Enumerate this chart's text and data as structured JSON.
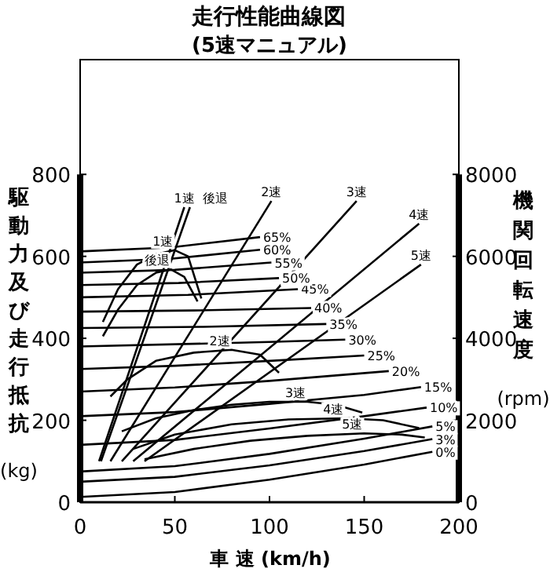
{
  "chart_data": {
    "type": "line",
    "title": "走行性能曲線図",
    "subtitle": "(5速マニュアル)",
    "xlabel": "車 速 (km/h)",
    "ylabel": "駆動力及び走行抵抗 (kg)",
    "y2label": "機関回転速度 (rpm)",
    "xlim": [
      0,
      200
    ],
    "xticks": [
      0,
      50,
      100,
      150,
      200
    ],
    "ylim": [
      0,
      1080
    ],
    "yticks": [
      0,
      200,
      400,
      600,
      800
    ],
    "y2lim": [
      0,
      10800
    ],
    "y2ticks": [
      0,
      2000,
      4000,
      6000,
      8000
    ],
    "grid": false,
    "legend": false,
    "series": [
      {
        "name": "1速",
        "color": "#000000",
        "axis": "y2",
        "x": [
          10,
          55
        ],
        "values": [
          1000,
          7200
        ]
      },
      {
        "name": "後退",
        "color": "#000000",
        "axis": "y2",
        "x": [
          11,
          58
        ],
        "values": [
          1000,
          7200
        ]
      },
      {
        "name": "2速",
        "color": "#000000",
        "axis": "y2",
        "x": [
          16,
          101
        ],
        "values": [
          1000,
          7350
        ]
      },
      {
        "name": "3速",
        "color": "#000000",
        "axis": "y2",
        "x": [
          22,
          146
        ],
        "values": [
          1000,
          7350
        ]
      },
      {
        "name": "4速",
        "color": "#000000",
        "axis": "y2",
        "x": [
          28,
          179
        ],
        "values": [
          1000,
          6800
        ]
      },
      {
        "name": "5速",
        "color": "#000000",
        "axis": "y2",
        "x": [
          34,
          180
        ],
        "values": [
          1000,
          5800
        ]
      },
      {
        "name": "1速",
        "color": "#000000",
        "x": [
          12,
          20,
          30,
          40,
          50,
          57,
          64
        ],
        "values": [
          440,
          520,
          580,
          605,
          615,
          600,
          497
        ]
      },
      {
        "name": "後退",
        "color": "#000000",
        "x": [
          12,
          20,
          30,
          40,
          48,
          55,
          62
        ],
        "values": [
          405,
          470,
          530,
          560,
          568,
          550,
          490
        ]
      },
      {
        "name": "2速",
        "color": "#000000",
        "x": [
          16,
          25,
          40,
          60,
          80,
          95,
          105
        ],
        "values": [
          258,
          300,
          345,
          365,
          372,
          360,
          316
        ]
      },
      {
        "name": "3速",
        "color": "#000000",
        "x": [
          22,
          40,
          60,
          80,
          100,
          120,
          135,
          149
        ],
        "values": [
          173,
          205,
          225,
          238,
          245,
          245,
          238,
          219
        ]
      },
      {
        "name": "4速",
        "color": "#000000",
        "x": [
          28,
          50,
          80,
          110,
          140,
          160,
          179
        ],
        "values": [
          130,
          165,
          190,
          202,
          205,
          200,
          181
        ]
      },
      {
        "name": "5速",
        "color": "#000000",
        "x": [
          34,
          60,
          90,
          120,
          150,
          170,
          182
        ],
        "values": [
          105,
          130,
          150,
          162,
          168,
          165,
          158
        ]
      },
      {
        "name": "0%",
        "color": "#000000",
        "x": [
          0,
          50,
          100,
          150,
          186
        ],
        "values": [
          13,
          25,
          55,
          92,
          123
        ]
      },
      {
        "name": "3%",
        "color": "#000000",
        "x": [
          0,
          50,
          100,
          150,
          186
        ],
        "values": [
          50,
          62,
          90,
          125,
          154
        ]
      },
      {
        "name": "5%",
        "color": "#000000",
        "x": [
          0,
          50,
          100,
          150,
          186
        ],
        "values": [
          75,
          88,
          118,
          155,
          185
        ]
      },
      {
        "name": "10%",
        "color": "#000000",
        "x": [
          0,
          50,
          100,
          150,
          183
        ],
        "values": [
          140,
          152,
          180,
          210,
          231
        ]
      },
      {
        "name": "15%",
        "color": "#000000",
        "x": [
          0,
          50,
          100,
          150,
          180
        ],
        "values": [
          210,
          220,
          240,
          262,
          281
        ]
      },
      {
        "name": "20%",
        "color": "#000000",
        "x": [
          0,
          50,
          100,
          163
        ],
        "values": [
          270,
          280,
          296,
          320
        ]
      },
      {
        "name": "25%",
        "color": "#000000",
        "x": [
          0,
          50,
          100,
          150
        ],
        "values": [
          325,
          333,
          345,
          358
        ]
      },
      {
        "name": "30%",
        "color": "#000000",
        "x": [
          0,
          100,
          140
        ],
        "values": [
          380,
          391,
          397
        ]
      },
      {
        "name": "35%",
        "color": "#000000",
        "x": [
          0,
          65,
          130
        ],
        "values": [
          425,
          428,
          435
        ]
      },
      {
        "name": "40%",
        "color": "#000000",
        "x": [
          0,
          60,
          122
        ],
        "values": [
          465,
          468,
          474
        ]
      },
      {
        "name": "45%",
        "color": "#000000",
        "x": [
          0,
          57,
          115
        ],
        "values": [
          500,
          506,
          520
        ]
      },
      {
        "name": "50%",
        "color": "#000000",
        "x": [
          0,
          52,
          105
        ],
        "values": [
          530,
          535,
          547
        ]
      },
      {
        "name": "55%",
        "color": "#000000",
        "x": [
          0,
          50,
          101
        ],
        "values": [
          560,
          567,
          585
        ]
      },
      {
        "name": "60%",
        "color": "#000000",
        "x": [
          0,
          48,
          95
        ],
        "values": [
          585,
          594,
          616
        ]
      },
      {
        "name": "65%",
        "color": "#000000",
        "x": [
          0,
          48,
          95
        ],
        "values": [
          612,
          622,
          647
        ]
      }
    ]
  }
}
